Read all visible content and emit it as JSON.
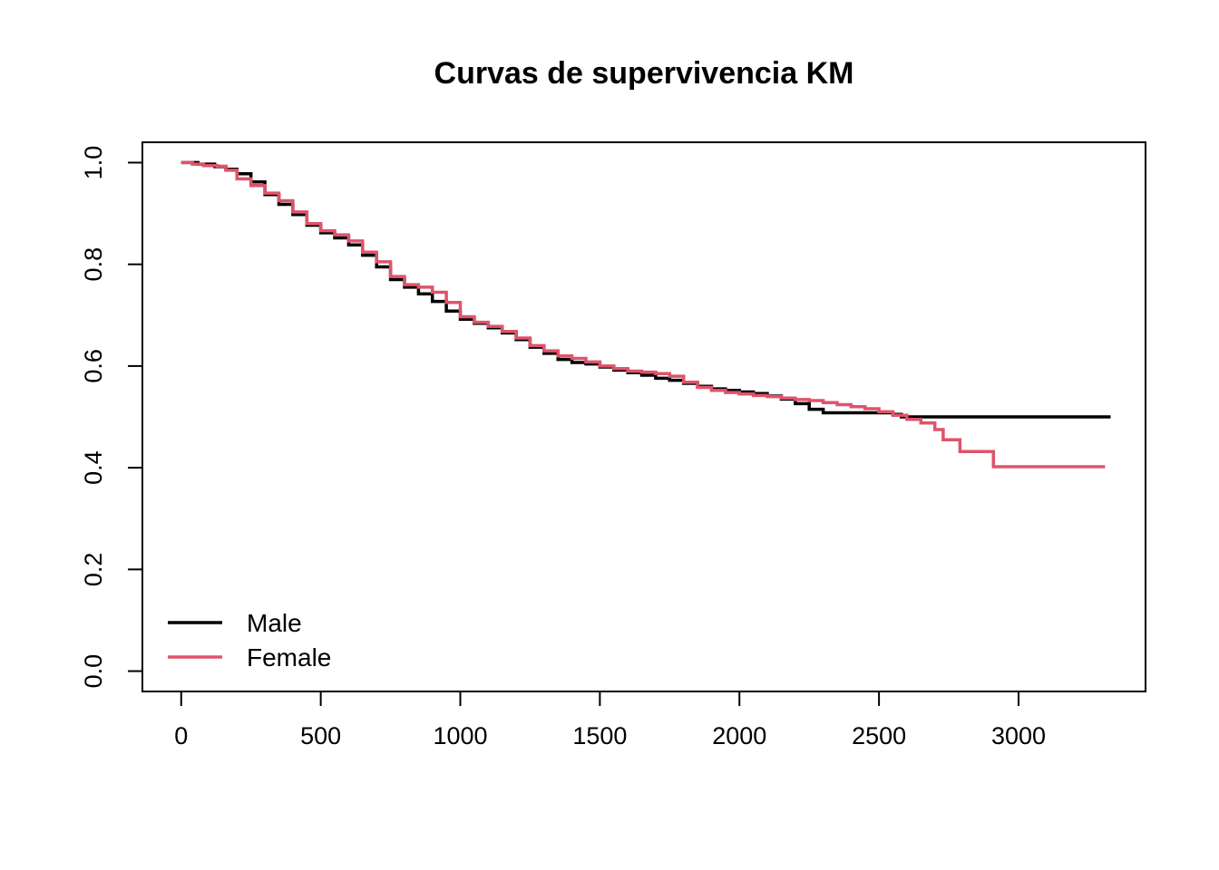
{
  "chart_data": {
    "type": "line",
    "step": true,
    "title": "Curvas de supervivencia KM",
    "xlabel": "",
    "ylabel": "",
    "xlim": [
      -139,
      3455
    ],
    "ylim": [
      -0.04,
      1.04
    ],
    "xticks": [
      0,
      500,
      1000,
      1500,
      2000,
      2500,
      3000
    ],
    "xtick_labels": [
      "0",
      "500",
      "1000",
      "1500",
      "2000",
      "2500",
      "3000"
    ],
    "yticks": [
      0.0,
      0.2,
      0.4,
      0.6,
      0.8,
      1.0
    ],
    "ytick_labels": [
      "0.0",
      "0.2",
      "0.4",
      "0.6",
      "0.8",
      "1.0"
    ],
    "grid": false,
    "legend_position": "bottom-left",
    "series": [
      {
        "name": "Male",
        "color": "#000000",
        "points": [
          [
            0,
            1.0
          ],
          [
            60,
            0.997
          ],
          [
            120,
            0.992
          ],
          [
            160,
            0.987
          ],
          [
            200,
            0.978
          ],
          [
            250,
            0.962
          ],
          [
            300,
            0.937
          ],
          [
            350,
            0.918
          ],
          [
            400,
            0.898
          ],
          [
            450,
            0.877
          ],
          [
            500,
            0.862
          ],
          [
            550,
            0.852
          ],
          [
            600,
            0.838
          ],
          [
            650,
            0.818
          ],
          [
            700,
            0.795
          ],
          [
            750,
            0.77
          ],
          [
            800,
            0.755
          ],
          [
            850,
            0.742
          ],
          [
            900,
            0.727
          ],
          [
            950,
            0.708
          ],
          [
            1000,
            0.692
          ],
          [
            1050,
            0.684
          ],
          [
            1100,
            0.675
          ],
          [
            1150,
            0.665
          ],
          [
            1200,
            0.652
          ],
          [
            1250,
            0.637
          ],
          [
            1300,
            0.625
          ],
          [
            1350,
            0.613
          ],
          [
            1400,
            0.607
          ],
          [
            1450,
            0.604
          ],
          [
            1500,
            0.598
          ],
          [
            1550,
            0.592
          ],
          [
            1600,
            0.587
          ],
          [
            1650,
            0.582
          ],
          [
            1700,
            0.576
          ],
          [
            1750,
            0.572
          ],
          [
            1800,
            0.566
          ],
          [
            1850,
            0.56
          ],
          [
            1900,
            0.555
          ],
          [
            1950,
            0.552
          ],
          [
            2000,
            0.549
          ],
          [
            2050,
            0.546
          ],
          [
            2100,
            0.541
          ],
          [
            2150,
            0.535
          ],
          [
            2200,
            0.526
          ],
          [
            2250,
            0.515
          ],
          [
            2300,
            0.508
          ],
          [
            2400,
            0.508
          ],
          [
            2500,
            0.508
          ],
          [
            2550,
            0.505
          ],
          [
            2580,
            0.5
          ],
          [
            3330,
            0.5
          ]
        ]
      },
      {
        "name": "Female",
        "color": "#DF536B",
        "points": [
          [
            0,
            1.0
          ],
          [
            40,
            0.997
          ],
          [
            80,
            0.994
          ],
          [
            130,
            0.993
          ],
          [
            160,
            0.985
          ],
          [
            200,
            0.968
          ],
          [
            250,
            0.955
          ],
          [
            300,
            0.94
          ],
          [
            350,
            0.925
          ],
          [
            400,
            0.903
          ],
          [
            450,
            0.88
          ],
          [
            500,
            0.866
          ],
          [
            550,
            0.858
          ],
          [
            600,
            0.846
          ],
          [
            650,
            0.824
          ],
          [
            700,
            0.805
          ],
          [
            750,
            0.776
          ],
          [
            800,
            0.76
          ],
          [
            850,
            0.755
          ],
          [
            900,
            0.745
          ],
          [
            950,
            0.725
          ],
          [
            1000,
            0.697
          ],
          [
            1050,
            0.686
          ],
          [
            1100,
            0.678
          ],
          [
            1150,
            0.668
          ],
          [
            1200,
            0.655
          ],
          [
            1250,
            0.64
          ],
          [
            1300,
            0.63
          ],
          [
            1350,
            0.62
          ],
          [
            1400,
            0.615
          ],
          [
            1450,
            0.608
          ],
          [
            1500,
            0.6
          ],
          [
            1550,
            0.595
          ],
          [
            1600,
            0.59
          ],
          [
            1650,
            0.588
          ],
          [
            1700,
            0.585
          ],
          [
            1750,
            0.58
          ],
          [
            1800,
            0.568
          ],
          [
            1850,
            0.558
          ],
          [
            1900,
            0.552
          ],
          [
            1950,
            0.548
          ],
          [
            2000,
            0.545
          ],
          [
            2050,
            0.542
          ],
          [
            2100,
            0.54
          ],
          [
            2150,
            0.537
          ],
          [
            2200,
            0.534
          ],
          [
            2250,
            0.532
          ],
          [
            2300,
            0.528
          ],
          [
            2350,
            0.524
          ],
          [
            2400,
            0.52
          ],
          [
            2450,
            0.516
          ],
          [
            2500,
            0.51
          ],
          [
            2550,
            0.503
          ],
          [
            2600,
            0.495
          ],
          [
            2650,
            0.488
          ],
          [
            2700,
            0.475
          ],
          [
            2730,
            0.455
          ],
          [
            2790,
            0.432
          ],
          [
            2910,
            0.402
          ],
          [
            3310,
            0.402
          ]
        ]
      }
    ]
  }
}
